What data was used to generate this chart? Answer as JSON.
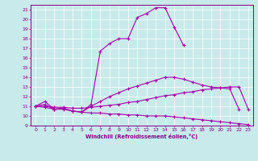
{
  "xlabel": "Windchill (Refroidissement éolien,°C)",
  "xlim": [
    -0.5,
    23.5
  ],
  "ylim": [
    9,
    21.5
  ],
  "xticks": [
    0,
    1,
    2,
    3,
    4,
    5,
    6,
    7,
    8,
    9,
    10,
    11,
    12,
    13,
    14,
    15,
    16,
    17,
    18,
    19,
    20,
    21,
    22,
    23
  ],
  "yticks": [
    9,
    10,
    11,
    12,
    13,
    14,
    15,
    16,
    17,
    18,
    19,
    20,
    21
  ],
  "bg_color": "#c8eaea",
  "line_color": "#aa00aa",
  "curve1_x": [
    0,
    1,
    2,
    3,
    4,
    5,
    6,
    7,
    8,
    9,
    10,
    11,
    12,
    13,
    14,
    15,
    16
  ],
  "curve1_y": [
    11.0,
    11.5,
    10.7,
    10.8,
    10.5,
    10.4,
    11.2,
    16.7,
    17.5,
    18.0,
    18.0,
    20.2,
    20.6,
    21.2,
    21.2,
    19.2,
    17.3
  ],
  "curve2_x": [
    0,
    1,
    2,
    3,
    4,
    5,
    6,
    7,
    8,
    9,
    10,
    11,
    12,
    13,
    14,
    15,
    16,
    17,
    18,
    19,
    20,
    21,
    22
  ],
  "curve2_y": [
    11.0,
    11.2,
    10.7,
    10.8,
    10.5,
    10.4,
    11.0,
    11.5,
    12.0,
    12.4,
    12.8,
    13.1,
    13.4,
    13.7,
    14.0,
    14.0,
    13.8,
    13.5,
    13.2,
    13.0,
    12.9,
    12.8,
    10.7
  ],
  "curve3_x": [
    0,
    1,
    2,
    3,
    4,
    5,
    6,
    7,
    8,
    9,
    10,
    11,
    12,
    13,
    14,
    15,
    16,
    17,
    18,
    19,
    20,
    21,
    22,
    23
  ],
  "curve3_y": [
    11.0,
    11.0,
    10.9,
    10.9,
    10.8,
    10.8,
    10.9,
    11.0,
    11.1,
    11.2,
    11.4,
    11.5,
    11.7,
    11.9,
    12.1,
    12.2,
    12.4,
    12.5,
    12.7,
    12.8,
    12.9,
    13.0,
    13.0,
    10.7
  ],
  "curve4_x": [
    0,
    1,
    2,
    3,
    4,
    5,
    6,
    7,
    8,
    9,
    10,
    11,
    12,
    13,
    14,
    15,
    16,
    17,
    18,
    19,
    20,
    21,
    22,
    23
  ],
  "curve4_y": [
    11.0,
    10.9,
    10.7,
    10.7,
    10.5,
    10.4,
    10.3,
    10.3,
    10.2,
    10.2,
    10.1,
    10.1,
    10.0,
    10.0,
    10.0,
    9.9,
    9.8,
    9.7,
    9.6,
    9.5,
    9.4,
    9.3,
    9.2,
    9.1
  ]
}
